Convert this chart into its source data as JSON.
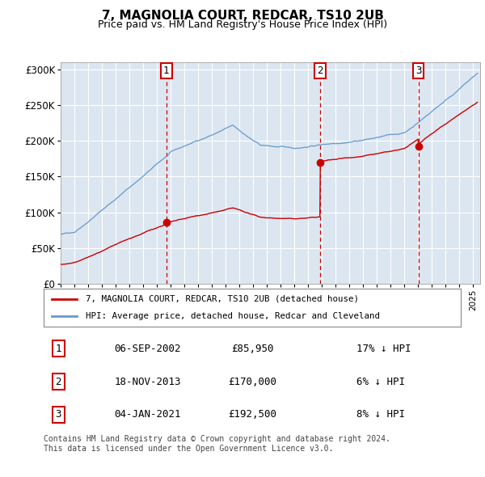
{
  "title": "7, MAGNOLIA COURT, REDCAR, TS10 2UB",
  "subtitle": "Price paid vs. HM Land Registry's House Price Index (HPI)",
  "ylim": [
    0,
    310000
  ],
  "yticks": [
    0,
    50000,
    100000,
    150000,
    200000,
    250000,
    300000
  ],
  "ytick_labels": [
    "£0",
    "£50K",
    "£100K",
    "£150K",
    "£200K",
    "£250K",
    "£300K"
  ],
  "xlim_start": 1995.0,
  "xlim_end": 2025.5,
  "plot_bg_color": "#dce6f1",
  "red_line_color": "#cc0000",
  "blue_line_color": "#6699cc",
  "vline_color": "#cc0000",
  "transactions": [
    {
      "label": "1",
      "year": 2002.68,
      "price": 85950
    },
    {
      "label": "2",
      "year": 2013.88,
      "price": 170000
    },
    {
      "label": "3",
      "year": 2021.01,
      "price": 192500
    }
  ],
  "legend_line1": "7, MAGNOLIA COURT, REDCAR, TS10 2UB (detached house)",
  "legend_line2": "HPI: Average price, detached house, Redcar and Cleveland",
  "footer1": "Contains HM Land Registry data © Crown copyright and database right 2024.",
  "footer2": "This data is licensed under the Open Government Licence v3.0.",
  "table_rows": [
    {
      "num": "1",
      "date": "06-SEP-2002",
      "price": "£85,950",
      "hpi": "17% ↓ HPI"
    },
    {
      "num": "2",
      "date": "18-NOV-2013",
      "price": "£170,000",
      "hpi": "6% ↓ HPI"
    },
    {
      "num": "3",
      "date": "04-JAN-2021",
      "price": "£192,500",
      "hpi": "8% ↓ HPI"
    }
  ]
}
